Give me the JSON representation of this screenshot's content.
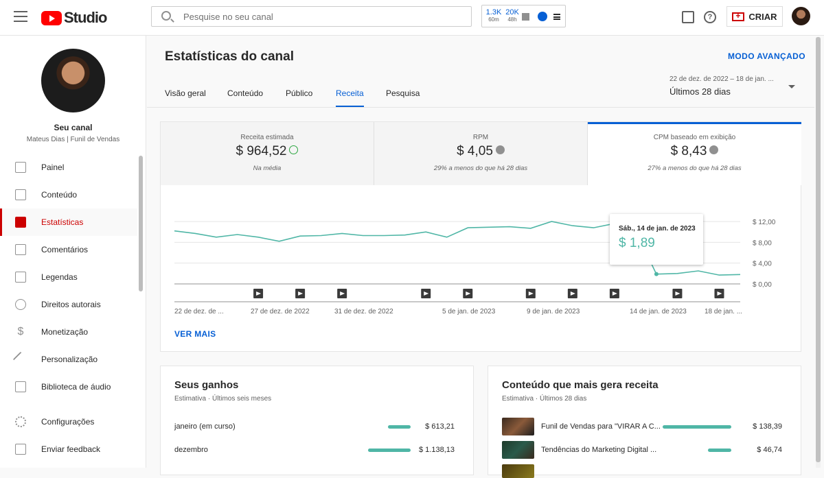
{
  "app": {
    "logo_text": "Studio"
  },
  "search": {
    "placeholder": "Pesquise no seu canal"
  },
  "realtime": {
    "subs_value": "1.3K",
    "subs_period": "60m",
    "views_value": "20K",
    "views_period": "48h"
  },
  "header": {
    "create_label": "CRIAR"
  },
  "channel": {
    "title": "Seu canal",
    "subtitle": "Mateus Dias | Funil de Vendas"
  },
  "sidebar": {
    "items": [
      {
        "label": "Painel",
        "icon": "dashboard-icon"
      },
      {
        "label": "Conteúdo",
        "icon": "content-icon"
      },
      {
        "label": "Estatísticas",
        "icon": "analytics-icon",
        "active": true
      },
      {
        "label": "Comentários",
        "icon": "comments-icon"
      },
      {
        "label": "Legendas",
        "icon": "subtitles-icon"
      },
      {
        "label": "Direitos autorais",
        "icon": "copyright-icon"
      },
      {
        "label": "Monetização",
        "icon": "dollar-icon"
      },
      {
        "label": "Personalização",
        "icon": "magic-wand-icon"
      },
      {
        "label": "Biblioteca de áudio",
        "icon": "audio-library-icon"
      },
      {
        "label": "Configurações",
        "icon": "gear-icon"
      },
      {
        "label": "Enviar feedback",
        "icon": "feedback-icon"
      }
    ]
  },
  "page": {
    "title": "Estatísticas do canal",
    "advanced_mode": "MODO AVANÇADO",
    "date_range": "22 de dez. de 2022 – 18 de jan. ...",
    "date_label": "Últimos 28 dias",
    "tabs": [
      {
        "label": "Visão geral"
      },
      {
        "label": "Conteúdo"
      },
      {
        "label": "Público"
      },
      {
        "label": "Receita",
        "active": true
      },
      {
        "label": "Pesquisa"
      }
    ]
  },
  "kpis": [
    {
      "label": "Receita estimada",
      "value": "$ 964,52",
      "note": "Na média",
      "status": "ok"
    },
    {
      "label": "RPM",
      "value": "$ 4,05",
      "note": "29% a menos do que há 28 dias",
      "status": "down"
    },
    {
      "label": "CPM baseado em exibição",
      "value": "$ 8,43",
      "note": "27% a menos do que há 28 dias",
      "status": "down",
      "selected": true
    }
  ],
  "tooltip": {
    "date": "Sáb., 14 de jan. de 2023",
    "value": "$ 1,89"
  },
  "ver_mais": "VER MAIS",
  "colors": {
    "accent": "#065fd4",
    "line": "#4fb6a6",
    "active_nav": "#cc0000"
  },
  "chart_data": {
    "type": "line",
    "title": "",
    "ylabel": "",
    "ylim": [
      0,
      12
    ],
    "y_ticks": [
      "$ 12,00",
      "$ 8,00",
      "$ 4,00",
      "$ 0,00"
    ],
    "x_tick_labels": [
      "22 de dez. de ...",
      "27 de dez. de 2022",
      "31 de dez. de 2022",
      "5 de jan. de 2023",
      "9 de jan. de 2023",
      "14 de jan. de 2023",
      "18 de jan. ..."
    ],
    "x": [
      "22/12",
      "23/12",
      "24/12",
      "25/12",
      "26/12",
      "27/12",
      "28/12",
      "29/12",
      "30/12",
      "31/12",
      "01/01",
      "02/01",
      "03/01",
      "04/01",
      "05/01",
      "06/01",
      "07/01",
      "08/01",
      "09/01",
      "10/01",
      "11/01",
      "12/01",
      "13/01",
      "14/01",
      "15/01",
      "16/01",
      "17/01",
      "18/01"
    ],
    "series": [
      {
        "values": [
          10.2,
          9.7,
          9.0,
          9.5,
          9.0,
          8.2,
          9.2,
          9.3,
          9.7,
          9.3,
          9.3,
          9.4,
          10.0,
          9.0,
          10.8,
          10.9,
          11.0,
          10.7,
          12.0,
          11.2,
          10.8,
          11.6,
          10.3,
          1.89,
          2.0,
          2.5,
          1.7,
          1.8
        ]
      }
    ],
    "video_markers_at": [
      "26/12",
      "28/12",
      "30/12",
      "03/01",
      "05/01",
      "08/01",
      "10/01",
      "12/01",
      "15/01",
      "17/01"
    ]
  },
  "earnings": {
    "title": "Seus ganhos",
    "subtitle": "Estimativa · Últimos seis meses",
    "rows": [
      {
        "label": "janeiro (em curso)",
        "amount": "$ 613,21",
        "share": 0.54
      },
      {
        "label": "dezembro",
        "amount": "$ 1.138,13",
        "share": 1.0
      }
    ]
  },
  "top_content": {
    "title": "Conteúdo que mais gera receita",
    "subtitle": "Estimativa · Últimos 28 dias",
    "rows": [
      {
        "label": "Funil de Vendas para \"VIRAR A C...",
        "amount": "$ 138,39",
        "share": 1.0
      },
      {
        "label": "Tendências do Marketing Digital ...",
        "amount": "$ 46,74",
        "share": 0.34
      }
    ]
  }
}
